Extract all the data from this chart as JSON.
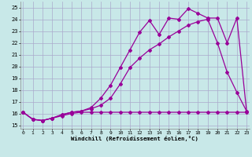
{
  "xlabel": "Windchill (Refroidissement éolien,°C)",
  "background_color": "#c8e8e8",
  "grid_color": "#aaaacc",
  "line_color": "#990099",
  "x_ticks": [
    0,
    1,
    2,
    3,
    4,
    5,
    6,
    7,
    8,
    9,
    10,
    11,
    12,
    13,
    14,
    15,
    16,
    17,
    18,
    19,
    20,
    21,
    22,
    23
  ],
  "y_ticks": [
    15,
    16,
    17,
    18,
    19,
    20,
    21,
    22,
    23,
    24,
    25
  ],
  "xlim": [
    -0.3,
    23.3
  ],
  "ylim": [
    14.7,
    25.5
  ],
  "line1_x": [
    0,
    1,
    2,
    3,
    4,
    5,
    6,
    7,
    8,
    9,
    10,
    11,
    12,
    13,
    14,
    15,
    16,
    17,
    18,
    19,
    20,
    21,
    22,
    23
  ],
  "line1_y": [
    16.1,
    15.5,
    15.4,
    15.6,
    15.8,
    16.0,
    16.1,
    16.1,
    16.1,
    16.1,
    16.1,
    16.1,
    16.1,
    16.1,
    16.1,
    16.1,
    16.1,
    16.1,
    16.1,
    16.1,
    16.1,
    16.1,
    16.1,
    16.1
  ],
  "line2_x": [
    0,
    1,
    2,
    3,
    4,
    5,
    6,
    7,
    8,
    9,
    10,
    11,
    12,
    13,
    14,
    15,
    16,
    17,
    18,
    19,
    20,
    21,
    22,
    23
  ],
  "line2_y": [
    16.1,
    15.5,
    15.4,
    15.6,
    15.9,
    16.1,
    16.2,
    16.4,
    16.7,
    17.3,
    18.5,
    19.9,
    20.7,
    21.4,
    21.9,
    22.5,
    23.0,
    23.5,
    23.8,
    24.0,
    22.0,
    19.5,
    17.8,
    16.2
  ],
  "line3_x": [
    0,
    1,
    2,
    3,
    4,
    5,
    6,
    7,
    8,
    9,
    10,
    11,
    12,
    13,
    14,
    15,
    16,
    17,
    18,
    19,
    20,
    21,
    22,
    23
  ],
  "line3_y": [
    16.1,
    15.5,
    15.4,
    15.6,
    15.9,
    16.1,
    16.2,
    16.5,
    17.3,
    18.4,
    19.9,
    21.4,
    22.9,
    23.9,
    22.7,
    24.1,
    24.0,
    24.9,
    24.5,
    24.1,
    24.1,
    22.0,
    24.1,
    16.2
  ]
}
